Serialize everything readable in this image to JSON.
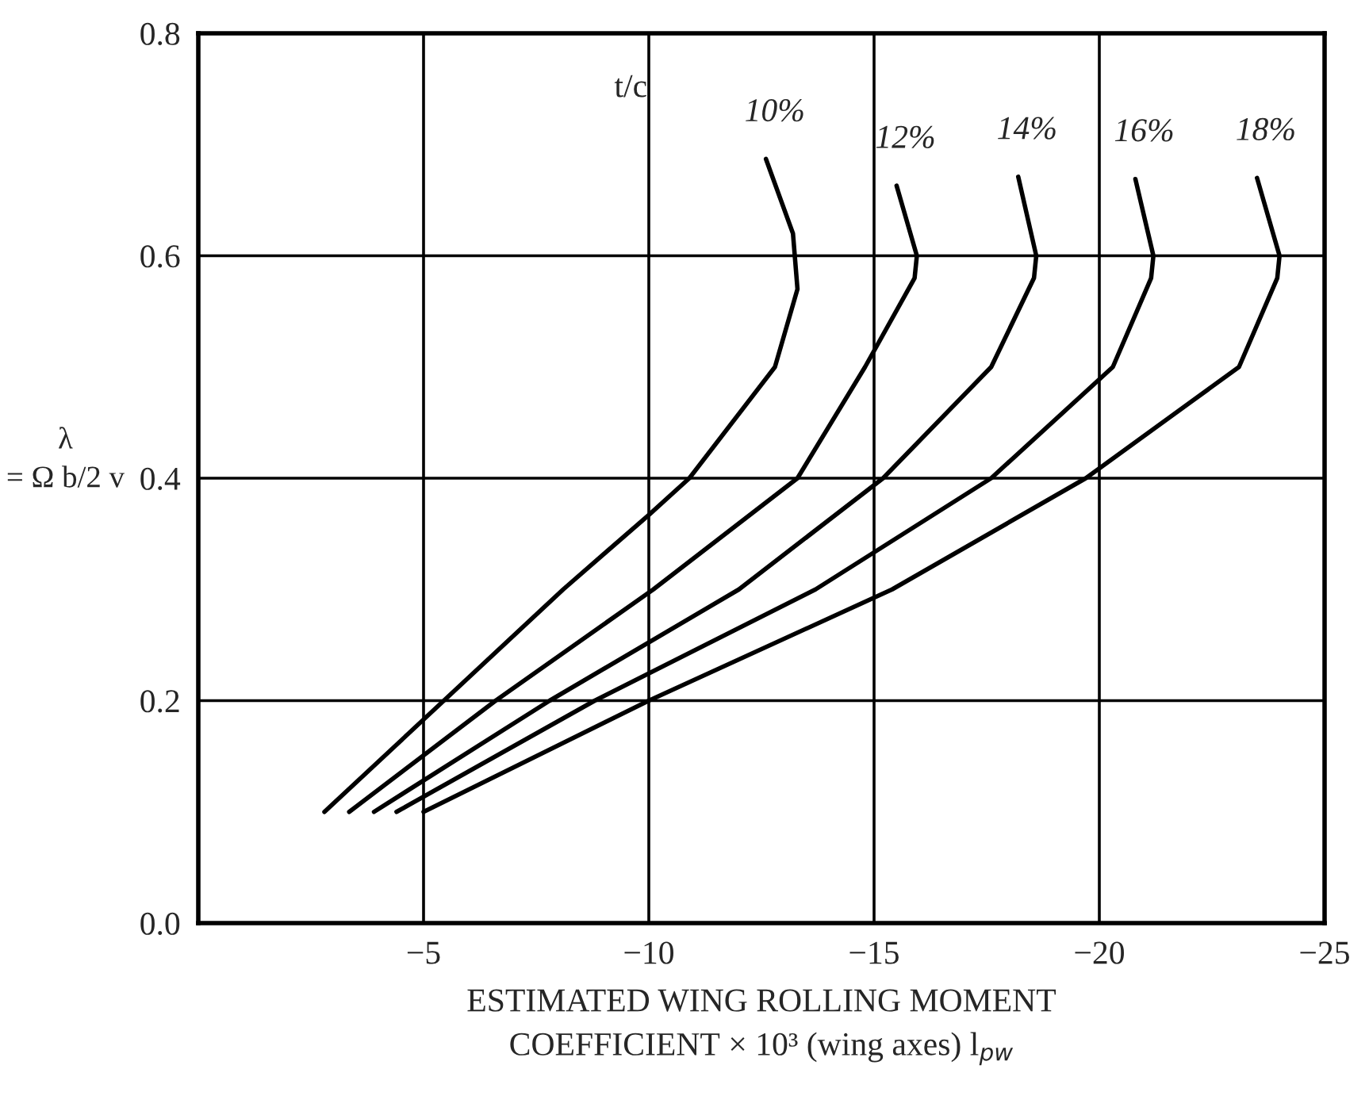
{
  "chart_data": {
    "type": "line",
    "xlabel": "ESTIMATED WING ROLLING MOMENT\nCOEFFICIENT × 10³ (wing axes) l$_{pw}$",
    "ylabel": "λ\n= Ω b/2 v",
    "legend_title": "t/c",
    "xlim": [
      0,
      -25
    ],
    "xticks": [
      -5,
      -10,
      -15,
      -20,
      -25
    ],
    "ylim": [
      0.0,
      0.8
    ],
    "yticks": [
      {
        "value": 0.0,
        "label": "0.0"
      },
      0.2,
      0.4,
      0.6,
      0.8
    ],
    "grid": true,
    "legend": false,
    "line_style": "solid",
    "marker": "none",
    "series": [
      {
        "name": "10%",
        "color": "#000000",
        "x": [
          -2.8,
          -5.45,
          -8.1,
          -10.0,
          -10.9,
          -12.8,
          -13.3,
          -13.2,
          -12.6
        ],
        "values": [
          0.1,
          0.2,
          0.3,
          0.367,
          0.4,
          0.5,
          0.57,
          0.62,
          0.687
        ]
      },
      {
        "name": "12%",
        "color": "#000000",
        "x": [
          -3.35,
          -6.6,
          -10.1,
          -13.3,
          -14.8,
          -15.9,
          -15.95,
          -15.5
        ],
        "values": [
          0.1,
          0.2,
          0.3,
          0.4,
          0.5,
          0.58,
          0.6,
          0.663
        ]
      },
      {
        "name": "14%",
        "color": "#000000",
        "x": [
          -3.9,
          -7.8,
          -12.0,
          -15.2,
          -17.6,
          -18.55,
          -18.6,
          -18.2
        ],
        "values": [
          0.1,
          0.2,
          0.3,
          0.4,
          0.5,
          0.58,
          0.6,
          0.671
        ]
      },
      {
        "name": "16%",
        "color": "#000000",
        "x": [
          -4.4,
          -8.8,
          -13.7,
          -17.6,
          -20.3,
          -21.15,
          -21.2,
          -20.8
        ],
        "values": [
          0.1,
          0.2,
          0.3,
          0.4,
          0.5,
          0.58,
          0.6,
          0.669
        ]
      },
      {
        "name": "18%",
        "color": "#000000",
        "x": [
          -5.0,
          -10.0,
          -15.4,
          -19.7,
          -23.1,
          -23.95,
          -24.0,
          -23.5
        ],
        "values": [
          0.1,
          0.2,
          0.3,
          0.4,
          0.5,
          0.58,
          0.6,
          0.67
        ]
      }
    ]
  }
}
